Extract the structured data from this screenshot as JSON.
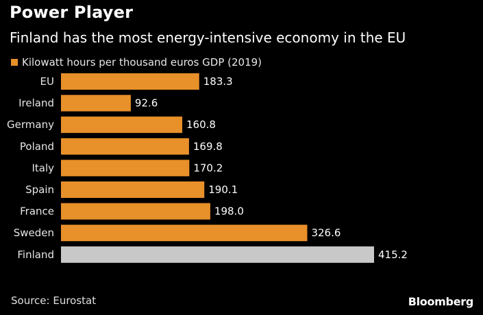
{
  "chart_data": {
    "type": "bar",
    "orientation": "horizontal",
    "title": "Power Player",
    "subtitle": "Finland has the most energy-intensive economy in the EU",
    "legend": [
      "Kilowatt hours per thousand euros GDP (2019)"
    ],
    "categories": [
      "EU",
      "Ireland",
      "Germany",
      "Poland",
      "Italy",
      "Spain",
      "France",
      "Sweden",
      "Finland"
    ],
    "values": [
      183.3,
      92.6,
      160.8,
      169.8,
      170.2,
      190.1,
      198.0,
      326.6,
      415.2
    ],
    "value_labels": [
      "183.3",
      "92.6",
      "160.8",
      "169.8",
      "170.2",
      "190.1",
      "198.0",
      "326.6",
      "415.2"
    ],
    "highlight_category": "Finland",
    "xlim": [
      0,
      415.2
    ],
    "source": "Source: Eurostat",
    "brand": "Bloomberg",
    "colors": {
      "bar": "#e8902a",
      "highlight": "#c8c8c8",
      "background": "#000000"
    }
  }
}
